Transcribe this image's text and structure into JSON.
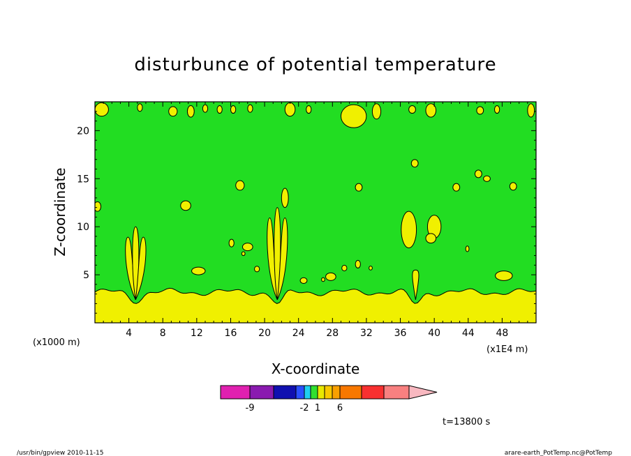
{
  "chart_data": {
    "type": "heatmap",
    "title": "disturbunce of potential temperature",
    "xlabel": "X-coordinate",
    "ylabel": "Z-coordinate",
    "x_unit_left": "(x1000 m)",
    "x_unit_right": "(x1E4 m)",
    "xlim": [
      0,
      52
    ],
    "ylim": [
      0,
      23
    ],
    "x_ticks": [
      4,
      8,
      12,
      16,
      20,
      24,
      28,
      32,
      36,
      40,
      44,
      48
    ],
    "y_ticks": [
      5,
      10,
      15,
      20
    ],
    "background_level": "green",
    "near_surface_layer": {
      "level": "yellow",
      "top_height": 3.2,
      "dips": [
        {
          "x": 4.8,
          "z": 2.0
        },
        {
          "x": 21.5,
          "z": 2.0
        },
        {
          "x": 37.8,
          "z": 2.0
        }
      ]
    },
    "plumes": [
      {
        "x": 4.8,
        "top": 10.0
      },
      {
        "x": 21.5,
        "top": 12.0
      },
      {
        "x": 37.8,
        "top": 5.5
      }
    ],
    "colorbar": {
      "colors": [
        "#e020b0",
        "#8a1ab0",
        "#1010b0",
        "#2a50ff",
        "#20d0f0",
        "#30e030",
        "#e8e800",
        "#f8c800",
        "#f8a000",
        "#f87800",
        "#f83030",
        "#f88080",
        "#f8b8c0"
      ],
      "labels": [
        {
          "text": "-9",
          "after_box": 1
        },
        {
          "text": "-2",
          "after_box": 4
        },
        {
          "text": "1",
          "after_box": 6
        },
        {
          "text": "6",
          "after_box": 9
        }
      ]
    }
  },
  "time_label": "t=13800 s",
  "footer_left": "/usr/bin/gpview   2010-11-15",
  "footer_right": "arare-earth_PotTemp.nc@PotTemp",
  "colors": {
    "green": "#22dd22",
    "yellow": "#f0f000"
  }
}
